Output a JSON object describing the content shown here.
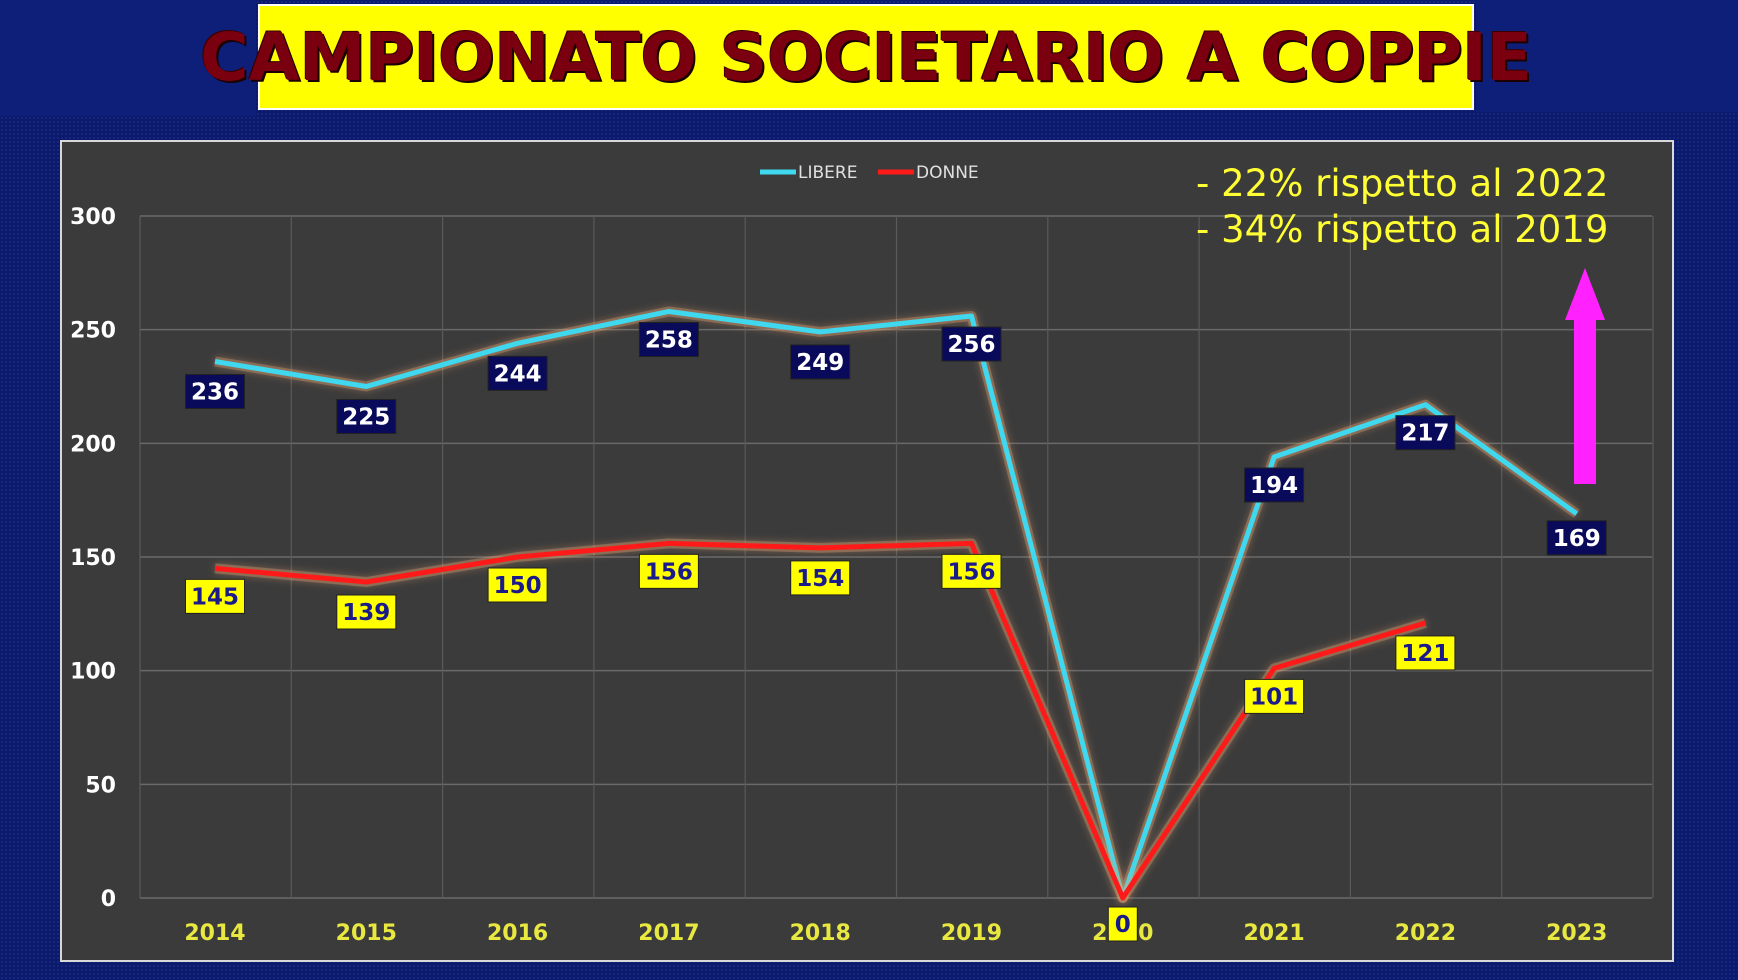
{
  "title": "CAMPIONATO SOCIETARIO A COPPIE",
  "notes": [
    "- 22% rispetto al 2022",
    "- 34% rispetto al 2019"
  ],
  "colors": {
    "libere": "#3fd8ee",
    "donne": "#ff1a1a",
    "title_bg": "#ffff00",
    "title_text": "#7a0010",
    "arrow": "#ff22ff",
    "label_libere_bg": "#0a0a5a",
    "label_donne_bg": "#ffff00"
  },
  "chart_data": {
    "type": "line",
    "categories": [
      "2014",
      "2015",
      "2016",
      "2017",
      "2018",
      "2019",
      "2020",
      "2021",
      "2022",
      "2023"
    ],
    "series": [
      {
        "name": "LIBERE",
        "values": [
          236,
          225,
          244,
          258,
          249,
          256,
          0,
          194,
          217,
          169
        ]
      },
      {
        "name": "DONNE",
        "values": [
          145,
          139,
          150,
          156,
          154,
          156,
          0,
          101,
          121,
          null
        ]
      }
    ],
    "data_labels": {
      "LIBERE": [
        "236",
        "225",
        "244",
        "258",
        "249",
        "256",
        "",
        "194",
        "217",
        "169"
      ],
      "DONNE": [
        "145",
        "139",
        "150",
        "156",
        "154",
        "156",
        "0",
        "101",
        "121",
        ""
      ]
    },
    "y_ticks": [
      "0",
      "50",
      "100",
      "150",
      "200",
      "250",
      "300"
    ],
    "ylim": [
      0,
      300
    ],
    "grid": true,
    "legend_position": "top-center",
    "annotation": "upward magenta arrow near 2023"
  }
}
